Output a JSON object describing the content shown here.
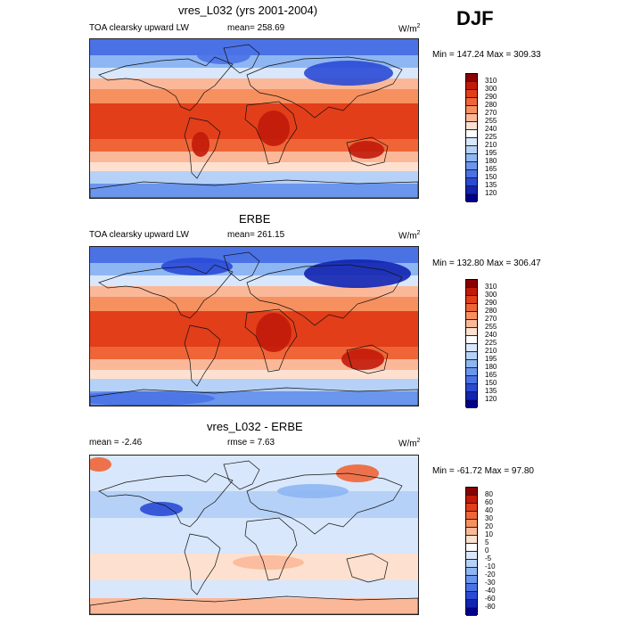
{
  "season": "DJF",
  "chart_data": [
    {
      "type": "heatmap",
      "title": "vres_L032 (yrs 2001-2004)",
      "left_label": "TOA clearsky upward LW",
      "center_label": "mean= 258.69",
      "units_base": "W/m",
      "units_exp": "2",
      "minmax": "Min = 147.24 Max = 309.33",
      "colorbar_levels": [
        "310",
        "300",
        "290",
        "280",
        "270",
        "255",
        "240",
        "225",
        "210",
        "195",
        "180",
        "165",
        "150",
        "135",
        "120"
      ],
      "colorbar_colors": [
        "#8b0000",
        "#c21a0a",
        "#e23e1a",
        "#ef6537",
        "#f7905f",
        "#fbb899",
        "#fde0cf",
        "#ffffff",
        "#d8e7fb",
        "#b6d1f7",
        "#8eb6f3",
        "#6b96ee",
        "#4a72e5",
        "#2a4ad6",
        "#1224b0",
        "#00008b"
      ]
    },
    {
      "type": "heatmap",
      "title": "ERBE",
      "left_label": "TOA clearsky upward LW",
      "center_label": "mean= 261.15",
      "units_base": "W/m",
      "units_exp": "2",
      "minmax": "Min = 132.80 Max = 306.47",
      "colorbar_levels": [
        "310",
        "300",
        "290",
        "280",
        "270",
        "255",
        "240",
        "225",
        "210",
        "195",
        "180",
        "165",
        "150",
        "135",
        "120"
      ],
      "colorbar_colors": [
        "#8b0000",
        "#c21a0a",
        "#e23e1a",
        "#ef6537",
        "#f7905f",
        "#fbb899",
        "#fde0cf",
        "#ffffff",
        "#d8e7fb",
        "#b6d1f7",
        "#8eb6f3",
        "#6b96ee",
        "#4a72e5",
        "#2a4ad6",
        "#1224b0",
        "#00008b"
      ]
    },
    {
      "type": "heatmap",
      "title": "vres_L032 - ERBE",
      "left_label": "mean =  -2.46",
      "center_label": "rmse =   7.63",
      "units_base": "W/m",
      "units_exp": "2",
      "minmax": "Min = -61.72 Max =  97.80",
      "colorbar_levels": [
        "80",
        "60",
        "40",
        "30",
        "20",
        "10",
        "5",
        "0",
        "-5",
        "-10",
        "-20",
        "-30",
        "-40",
        "-60",
        "-80"
      ],
      "colorbar_colors": [
        "#8b0000",
        "#c21a0a",
        "#e23e1a",
        "#ef6537",
        "#f7905f",
        "#fbb899",
        "#fde0cf",
        "#ffffff",
        "#d8e7fb",
        "#b6d1f7",
        "#8eb6f3",
        "#6b96ee",
        "#4a72e5",
        "#2a4ad6",
        "#1224b0",
        "#00008b"
      ]
    }
  ]
}
